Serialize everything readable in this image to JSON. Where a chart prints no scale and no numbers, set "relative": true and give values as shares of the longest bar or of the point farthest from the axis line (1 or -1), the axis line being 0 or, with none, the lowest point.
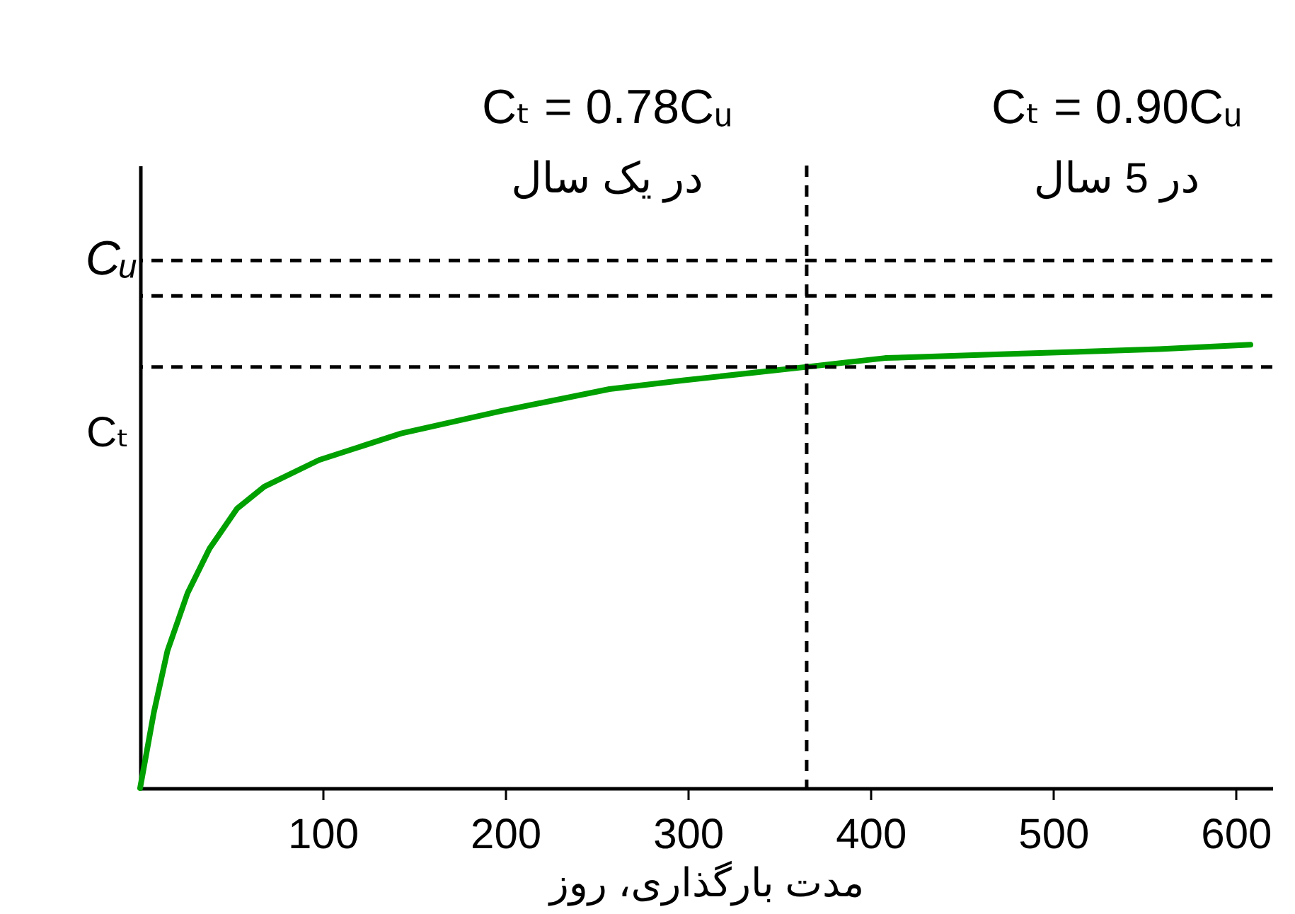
{
  "chart_data": {
    "type": "line",
    "relative": true,
    "xlabel": "مدت بارگذاری، روز",
    "ylabel": "Cₜ",
    "xlim": [
      0,
      620
    ],
    "xticks": [
      100,
      200,
      300,
      400,
      500,
      600
    ],
    "marker": "none",
    "line_style": "solid",
    "series": [
      {
        "color": "#00a000",
        "x": [
          0,
          7.5,
          15,
          26,
          38,
          53,
          68,
          98,
          143,
          197,
          257,
          298,
          365,
          408,
          483,
          558,
          608
        ],
        "values": [
          0,
          0.17,
          0.31,
          0.44,
          0.54,
          0.63,
          0.68,
          0.74,
          0.8,
          0.85,
          0.9,
          0.92,
          0.95,
          0.97,
          0.98,
          0.99,
          1
        ]
      }
    ],
    "ref_lines": [
      {
        "axis": "y",
        "value": 1.19,
        "label": "Cᵤ",
        "line_style": "dashed",
        "color": "#000000"
      },
      {
        "axis": "y",
        "value": 0.95,
        "line_style": "dashed",
        "color": "#000000"
      },
      {
        "axis": "y",
        "value": 1.11,
        "line_style": "dashed",
        "color": "#000000"
      },
      {
        "axis": "x",
        "value": 365,
        "line_style": "dashed",
        "color": "#000000"
      }
    ],
    "annotations": [
      "Cₜ = 0.78Cᵤ",
      "در یک سال",
      "Cₜ = 0.90Cᵤ",
      "در 5 سال"
    ]
  }
}
